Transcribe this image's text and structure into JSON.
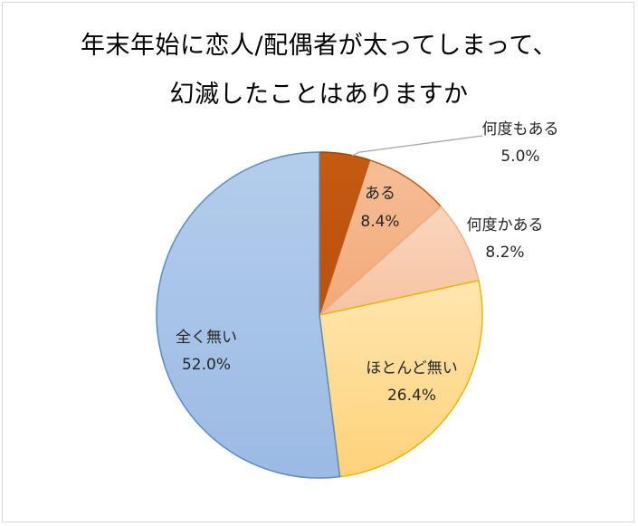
{
  "chart_data": {
    "type": "pie",
    "title_line1": "年末年始に恋人/配偶者が太ってしまって、",
    "title_line2": "幻滅したことはありますか",
    "slices": [
      {
        "label": "何度もある",
        "value": 5.0,
        "pct_text": "5.0%",
        "color": "#C55A11",
        "stroke": "#A04600"
      },
      {
        "label": "ある",
        "value": 8.4,
        "pct_text": "8.4%",
        "color": "#F4B183",
        "stroke": "#C55A11"
      },
      {
        "label": "何度かある",
        "value": 8.2,
        "pct_text": "8.2%",
        "color": "#F8CBAD",
        "stroke": "#F4B183"
      },
      {
        "label": "ほとんど無い",
        "value": 26.4,
        "pct_text": "26.4%",
        "color": "#FFD88A",
        "stroke": "#F0B400"
      },
      {
        "label": "全く無い",
        "value": 52.0,
        "pct_text": "52.0%",
        "color": "#A9C4E8",
        "stroke": "#5B8BC4"
      }
    ],
    "start_angle_deg": 0,
    "direction": "clockwise"
  }
}
